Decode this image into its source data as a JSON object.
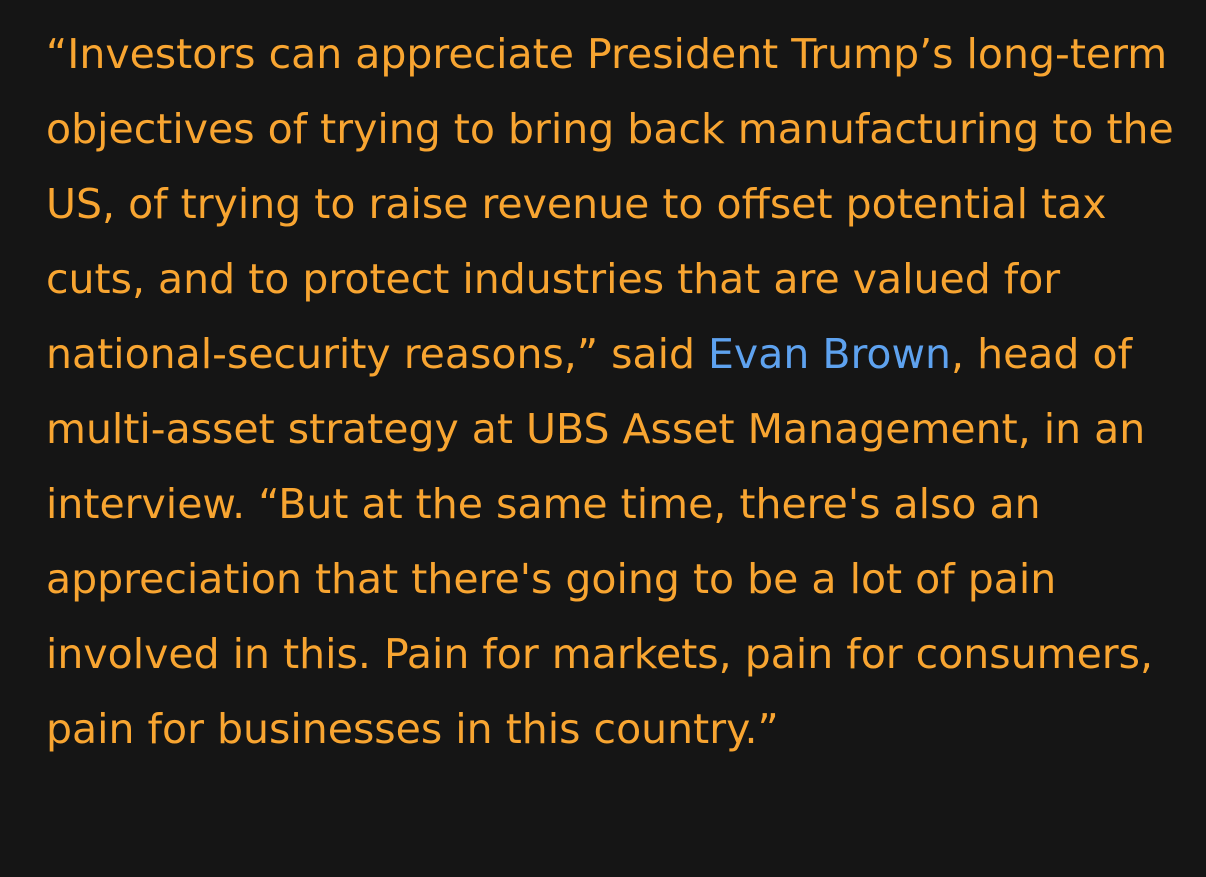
{
  "article": {
    "quote_part1": "“Investors can appreciate President Trump’s long-term objectives of trying to bring back manufacturing to the US, of trying to raise revenue to offset potential tax cuts, and to protect industries that are valued for national-security reasons,” said ",
    "person_link": "Evan Brown",
    "quote_part2": ", head of multi-asset strategy at UBS Asset Management, in an interview. “But at the same time, there's also an appreciation that there's going to be a lot of pain involved in this. Pain for markets, pain for consumers, pain for businesses in this country.”"
  },
  "colors": {
    "background": "#151515",
    "text": "#f8a531",
    "link": "#5ea2ef"
  }
}
